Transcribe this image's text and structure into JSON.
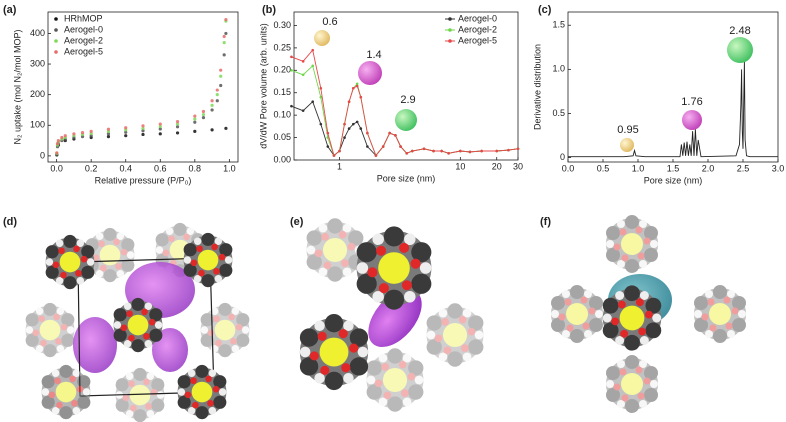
{
  "chart_data": [
    {
      "type": "scatter",
      "panel_label": "(a)",
      "x_label": "Relative pressure (P/P₀)",
      "y_label": "N₂ uptake (mol N₂/mol MOP)",
      "xlim": [
        -0.05,
        1.05
      ],
      "ylim": [
        -20,
        470
      ],
      "xticks": [
        {
          "value": 0,
          "label": "0.0"
        },
        {
          "value": 0.2,
          "label": "0.2"
        },
        {
          "value": 0.4,
          "label": "0.4"
        },
        {
          "value": 0.6,
          "label": "0.6"
        },
        {
          "value": 0.8,
          "label": "0.8"
        },
        {
          "value": 1,
          "label": "1.0"
        }
      ],
      "yticks": [
        0,
        100,
        200,
        300,
        400
      ],
      "legend": "upper left",
      "series": [
        {
          "name": "HRhMOP",
          "color": "#111111",
          "x": [
            0.001,
            0.01,
            0.05,
            0.1,
            0.2,
            0.3,
            0.4,
            0.5,
            0.6,
            0.7,
            0.8,
            0.9,
            0.98
          ],
          "values": [
            3,
            35,
            50,
            55,
            60,
            63,
            66,
            70,
            72,
            75,
            80,
            85,
            90
          ]
        },
        {
          "name": "Aerogel-0",
          "color": "#555555",
          "x": [
            0.001,
            0.005,
            0.01,
            0.03,
            0.05,
            0.1,
            0.15,
            0.2,
            0.3,
            0.4,
            0.5,
            0.6,
            0.7,
            0.8,
            0.85,
            0.9,
            0.93,
            0.95,
            0.97,
            0.98
          ],
          "values": [
            5,
            30,
            40,
            50,
            55,
            60,
            63,
            66,
            72,
            77,
            82,
            88,
            95,
            110,
            125,
            150,
            180,
            230,
            330,
            400
          ]
        },
        {
          "name": "Aerogel-2",
          "color": "#7ed957",
          "x": [
            0.001,
            0.005,
            0.01,
            0.03,
            0.05,
            0.1,
            0.15,
            0.2,
            0.3,
            0.4,
            0.5,
            0.6,
            0.7,
            0.8,
            0.85,
            0.9,
            0.93,
            0.95,
            0.97,
            0.98
          ],
          "values": [
            8,
            35,
            45,
            55,
            60,
            66,
            70,
            73,
            80,
            85,
            90,
            96,
            104,
            120,
            135,
            165,
            200,
            260,
            370,
            440
          ]
        },
        {
          "name": "Aerogel-5",
          "color": "#e86a6a",
          "x": [
            0.001,
            0.005,
            0.01,
            0.03,
            0.05,
            0.1,
            0.15,
            0.2,
            0.3,
            0.4,
            0.5,
            0.6,
            0.7,
            0.8,
            0.85,
            0.9,
            0.93,
            0.95,
            0.97,
            0.98
          ],
          "values": [
            10,
            40,
            50,
            60,
            66,
            72,
            76,
            80,
            87,
            92,
            98,
            104,
            112,
            130,
            145,
            180,
            215,
            280,
            390,
            445
          ]
        }
      ]
    },
    {
      "type": "line",
      "panel_label": "(b)",
      "marker": true,
      "x_label": "Pore size (nm)",
      "y_label": "dV/dW Pore volume (arb. units)",
      "xscale": "log",
      "xlim": [
        0.42,
        30
      ],
      "ylim": [
        0,
        0.33
      ],
      "xticks": [
        1,
        10,
        20,
        30
      ],
      "yticks": [
        {
          "value": 0,
          "label": "0.00"
        },
        {
          "value": 0.05,
          "label": "0.05"
        },
        {
          "value": 0.1,
          "label": "0.10"
        },
        {
          "value": 0.15,
          "label": "0.15"
        },
        {
          "value": 0.2,
          "label": "0.20"
        },
        {
          "value": 0.25,
          "label": "0.25"
        },
        {
          "value": 0.3,
          "label": "0.30"
        }
      ],
      "legend": "upper right",
      "annotations": [
        "0.6",
        "1.4",
        "2.9"
      ],
      "series": [
        {
          "name": "Aerogel-0",
          "color": "#333333",
          "x": [
            0.4,
            0.5,
            0.6,
            0.7,
            0.8,
            0.9,
            1.0,
            1.1,
            1.2,
            1.3,
            1.4,
            1.5,
            1.7,
            2.0,
            2.3,
            2.6,
            2.9,
            3.2,
            3.6,
            4,
            5,
            6,
            7,
            8,
            10,
            12,
            15,
            20,
            25,
            30
          ],
          "values": [
            0.12,
            0.11,
            0.13,
            0.08,
            0.03,
            0.01,
            0.02,
            0.05,
            0.07,
            0.08,
            0.085,
            0.07,
            0.03,
            0.01,
            0.03,
            0.06,
            0.055,
            0.03,
            0.015,
            0.02,
            0.025,
            0.02,
            0.02,
            0.015,
            0.02,
            0.018,
            0.02,
            0.02,
            0.022,
            0.025
          ]
        },
        {
          "name": "Aerogel-2",
          "color": "#6fd64a",
          "x": [
            0.4,
            0.5,
            0.6,
            0.7,
            0.8,
            0.9,
            1.0,
            1.1,
            1.2,
            1.3,
            1.4,
            1.5,
            1.7,
            2.0,
            2.3,
            2.6,
            2.9,
            3.2,
            3.6,
            4,
            5,
            6,
            7,
            8,
            10,
            12,
            15,
            20,
            25,
            30
          ],
          "values": [
            0.2,
            0.19,
            0.21,
            0.14,
            0.05,
            0.01,
            0.02,
            0.08,
            0.13,
            0.16,
            0.17,
            0.14,
            0.06,
            0.01,
            0.03,
            0.06,
            0.055,
            0.03,
            0.015,
            0.02,
            0.025,
            0.02,
            0.02,
            0.015,
            0.02,
            0.018,
            0.02,
            0.02,
            0.022,
            0.025
          ]
        },
        {
          "name": "Aerogel-5",
          "color": "#e8474a",
          "x": [
            0.4,
            0.5,
            0.6,
            0.7,
            0.8,
            0.9,
            1.0,
            1.1,
            1.2,
            1.3,
            1.4,
            1.5,
            1.7,
            2.0,
            2.3,
            2.6,
            2.9,
            3.2,
            3.6,
            4,
            5,
            6,
            7,
            8,
            10,
            12,
            15,
            20,
            25,
            30
          ],
          "values": [
            0.23,
            0.22,
            0.245,
            0.16,
            0.06,
            0.01,
            0.02,
            0.08,
            0.13,
            0.16,
            0.165,
            0.14,
            0.06,
            0.01,
            0.03,
            0.06,
            0.055,
            0.03,
            0.015,
            0.02,
            0.025,
            0.02,
            0.02,
            0.015,
            0.02,
            0.018,
            0.02,
            0.02,
            0.022,
            0.025
          ]
        }
      ]
    },
    {
      "type": "line",
      "panel_label": "(c)",
      "x_label": "Pore size (nm)",
      "y_label": "Derivative distribution",
      "xlim": [
        0,
        3
      ],
      "ylim": [
        -0.05,
        1.65
      ],
      "xticks": [
        {
          "value": 0,
          "label": "0.0"
        },
        0.5,
        {
          "value": 1,
          "label": "1.0"
        },
        1.5,
        {
          "value": 2,
          "label": "2.0"
        },
        2.5,
        {
          "value": 3,
          "label": "3.0"
        }
      ],
      "yticks": [
        0,
        0.5,
        {
          "value": 1,
          "label": "1.0"
        },
        1.5
      ],
      "annotations": [
        "0.95",
        "1.76",
        "2.48"
      ],
      "series": [
        {
          "color": "#222222",
          "x": [
            0,
            0.8,
            0.93,
            0.95,
            0.97,
            1.1,
            1.6,
            1.62,
            1.64,
            1.66,
            1.68,
            1.7,
            1.72,
            1.74,
            1.76,
            1.78,
            1.8,
            1.82,
            1.84,
            1.86,
            1.9,
            2.4,
            2.45,
            2.47,
            2.48,
            2.49,
            2.5,
            2.51,
            2.52,
            2.53,
            2.55,
            2.6,
            3.0
          ],
          "values": [
            0.01,
            0.01,
            0.02,
            0.08,
            0.02,
            0.01,
            0.01,
            0.15,
            0.02,
            0.17,
            0.02,
            0.18,
            0.02,
            0.15,
            0.02,
            0.3,
            0.02,
            0.32,
            0.02,
            0.2,
            0.01,
            0.02,
            0.15,
            0.6,
            1.0,
            0.3,
            0.1,
            0.6,
            1.1,
            0.2,
            0.02,
            0.01,
            0.01
          ]
        }
      ]
    }
  ],
  "panels": [
    "(d)",
    "(e)",
    "(f)"
  ]
}
